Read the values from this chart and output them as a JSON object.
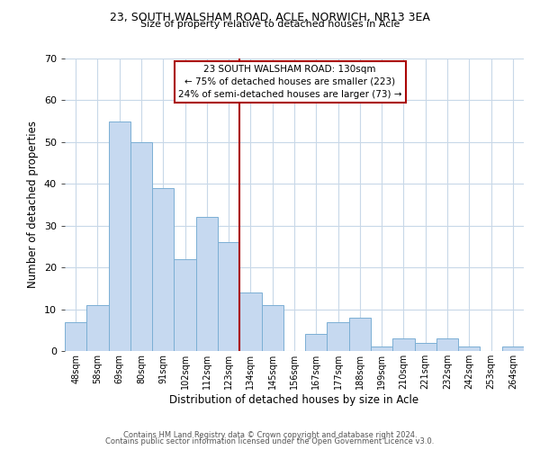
{
  "title1": "23, SOUTH WALSHAM ROAD, ACLE, NORWICH, NR13 3EA",
  "title2": "Size of property relative to detached houses in Acle",
  "xlabel": "Distribution of detached houses by size in Acle",
  "ylabel": "Number of detached properties",
  "bar_labels": [
    "48sqm",
    "58sqm",
    "69sqm",
    "80sqm",
    "91sqm",
    "102sqm",
    "112sqm",
    "123sqm",
    "134sqm",
    "145sqm",
    "156sqm",
    "167sqm",
    "177sqm",
    "188sqm",
    "199sqm",
    "210sqm",
    "221sqm",
    "232sqm",
    "242sqm",
    "253sqm",
    "264sqm"
  ],
  "bar_values": [
    7,
    11,
    55,
    50,
    39,
    22,
    32,
    26,
    14,
    11,
    0,
    4,
    7,
    8,
    1,
    3,
    2,
    3,
    1,
    0,
    1
  ],
  "bar_color": "#c6d9f0",
  "bar_edge_color": "#7bafd4",
  "ylim": [
    0,
    70
  ],
  "yticks": [
    0,
    10,
    20,
    30,
    40,
    50,
    60,
    70
  ],
  "vline_x": 7.5,
  "vline_color": "#aa0000",
  "annotation_title": "23 SOUTH WALSHAM ROAD: 130sqm",
  "annotation_line1": "← 75% of detached houses are smaller (223)",
  "annotation_line2": "24% of semi-detached houses are larger (73) →",
  "annotation_box_color": "#ffffff",
  "annotation_box_edge": "#aa0000",
  "footer1": "Contains HM Land Registry data © Crown copyright and database right 2024.",
  "footer2": "Contains public sector information licensed under the Open Government Licence v3.0.",
  "background_color": "#ffffff",
  "grid_color": "#c8d8e8"
}
